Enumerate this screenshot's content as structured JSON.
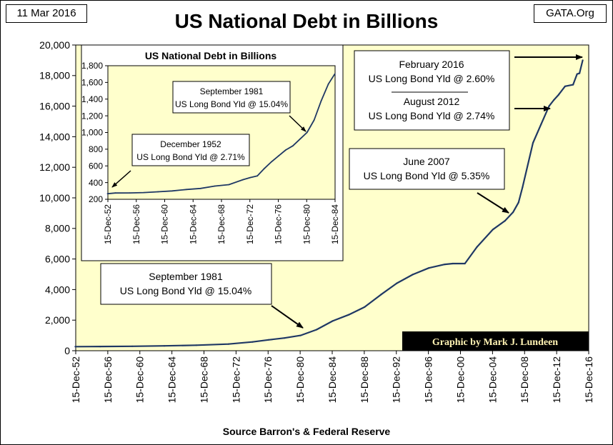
{
  "header": {
    "date": "11 Mar 2016",
    "site": "GATA.Org",
    "title": "US National Debt in Billions",
    "source": "Source Barron's & Federal Reserve"
  },
  "credit": "Graphic by Mark J. Lundeen",
  "colors": {
    "plot_bg": "#ffffcc",
    "line": "#1f3864",
    "credit_bg": "#000000",
    "credit_text": "#fff2b3"
  },
  "annotations": [
    {
      "id": "feb2016",
      "lines": [
        "February 2016",
        "US Long Bond Yld @ 2.60%"
      ]
    },
    {
      "id": "aug2012",
      "lines": [
        "August 2012",
        "US Long Bond Yld @ 2.74%"
      ]
    },
    {
      "id": "jun2007",
      "lines": [
        "June 2007",
        "US Long Bond Yld @ 5.35%"
      ]
    },
    {
      "id": "sep1981",
      "lines": [
        "September 1981",
        "US Long Bond Yld @ 15.04%"
      ]
    }
  ],
  "chart_data": [
    {
      "type": "line",
      "title": "US National Debt in Billions",
      "xlabel": "",
      "ylabel": "",
      "ylim": [
        0,
        20000
      ],
      "grid": false,
      "yticks": [
        0,
        2000,
        4000,
        6000,
        8000,
        10000,
        12000,
        14000,
        16000,
        18000,
        20000
      ],
      "ytick_labels": [
        "0",
        "2,000",
        "4,000",
        "6,000",
        "8,000",
        "10,000",
        "12,000",
        "14,000",
        "16,000",
        "18,000",
        "20,000"
      ],
      "xlim": [
        1952.95,
        2016.95
      ],
      "xtick_labels": [
        "15-Dec-52",
        "15-Dec-56",
        "15-Dec-60",
        "15-Dec-64",
        "15-Dec-68",
        "15-Dec-72",
        "15-Dec-76",
        "15-Dec-80",
        "15-Dec-84",
        "15-Dec-88",
        "15-Dec-92",
        "15-Dec-96",
        "15-Dec-00",
        "15-Dec-04",
        "15-Dec-08",
        "15-Dec-12",
        "15-Dec-16"
      ],
      "series": [
        {
          "x": [
            1952.9,
            1956,
            1960,
            1964,
            1968,
            1972,
            1975,
            1977,
            1979,
            1981,
            1983,
            1985,
            1987,
            1989,
            1991,
            1993,
            1995,
            1997,
            1999,
            2000,
            2001.5,
            2003,
            2005,
            2006.5,
            2007.5,
            2008.2,
            2008.7,
            2010,
            2011,
            2012,
            2012.6,
            2013.2,
            2014,
            2015,
            2015.5,
            2015.8,
            2016.2
          ],
          "y": [
            267,
            276,
            290,
            317,
            358,
            435,
            576,
            710,
            830,
            1000,
            1380,
            1945,
            2350,
            2860,
            3660,
            4410,
            4980,
            5410,
            5650,
            5700,
            5700,
            6780,
            7930,
            8500,
            9050,
            9700,
            10700,
            13600,
            14800,
            16000,
            16400,
            16750,
            17300,
            17400,
            18100,
            18150,
            19000
          ]
        }
      ]
    },
    {
      "type": "line",
      "title": "US National Debt in Billions",
      "xlabel": "",
      "ylabel": "",
      "ylim": [
        200,
        1800
      ],
      "grid": false,
      "yticks": [
        200,
        400,
        600,
        800,
        1000,
        1200,
        1400,
        1600,
        1800
      ],
      "ytick_labels": [
        "200",
        "400",
        "600",
        "800",
        "1,000",
        "1,200",
        "1,400",
        "1,600",
        "1,800"
      ],
      "xlim": [
        1952.95,
        1984.95
      ],
      "xtick_labels": [
        "15-Dec-52",
        "15-Dec-56",
        "15-Dec-60",
        "15-Dec-64",
        "15-Dec-68",
        "15-Dec-72",
        "15-Dec-76",
        "15-Dec-80",
        "15-Dec-84"
      ],
      "annotations": [
        {
          "id": "dec1952",
          "lines": [
            "December 1952",
            "US Long Bond Yld @ 2.71%"
          ]
        },
        {
          "id": "sep1981i",
          "lines": [
            "September 1981",
            "US Long Bond Yld @ 15.04%"
          ]
        }
      ],
      "series": [
        {
          "x": [
            1952.9,
            1954,
            1956,
            1958,
            1960,
            1962,
            1964,
            1966,
            1968,
            1970,
            1972,
            1973,
            1974,
            1975,
            1976,
            1977,
            1978,
            1979,
            1980,
            1981,
            1982,
            1983,
            1984,
            1984.9
          ],
          "y": [
            267,
            275,
            276,
            280,
            290,
            300,
            317,
            330,
            358,
            375,
            435,
            460,
            480,
            570,
            650,
            720,
            790,
            840,
            920,
            1000,
            1150,
            1380,
            1580,
            1700
          ]
        }
      ]
    }
  ]
}
